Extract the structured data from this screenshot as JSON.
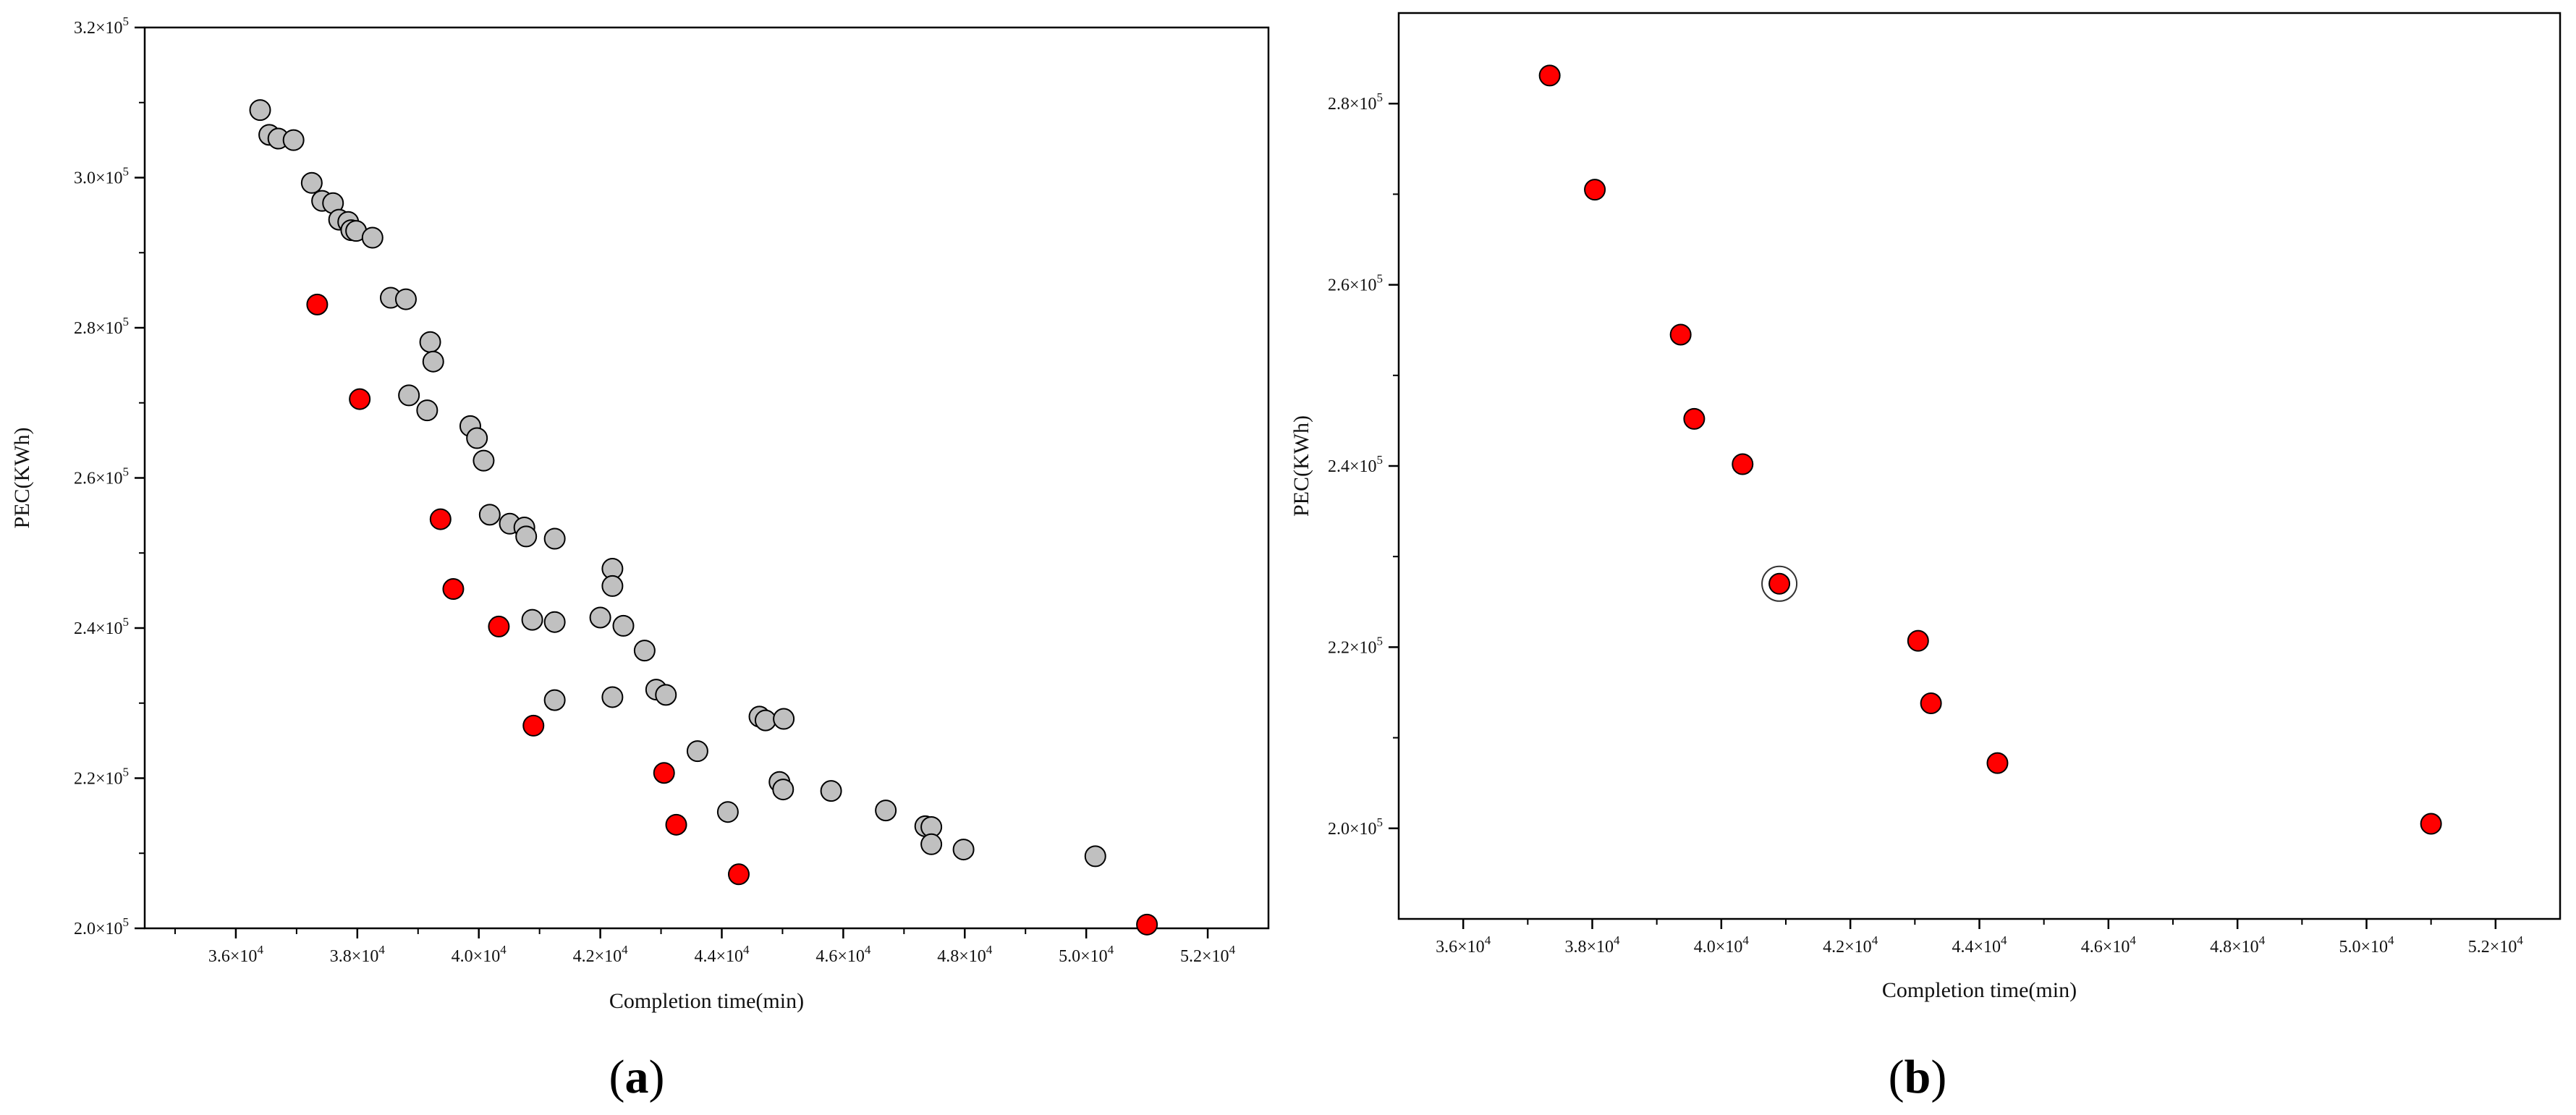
{
  "chart_data": [
    {
      "type": "scatter",
      "panel_label": "a",
      "xlabel": "Completion time(min)",
      "ylabel": "PEC(KWh)",
      "xlim": [
        34500,
        53000
      ],
      "ylim": [
        200000,
        320000
      ],
      "x_ticks": [
        {
          "value": 36000,
          "mant": "3.6",
          "exp": "4"
        },
        {
          "value": 38000,
          "mant": "3.8",
          "exp": "4"
        },
        {
          "value": 40000,
          "mant": "4.0",
          "exp": "4"
        },
        {
          "value": 42000,
          "mant": "4.2",
          "exp": "4"
        },
        {
          "value": 44000,
          "mant": "4.4",
          "exp": "4"
        },
        {
          "value": 46000,
          "mant": "4.6",
          "exp": "4"
        },
        {
          "value": 48000,
          "mant": "4.8",
          "exp": "4"
        },
        {
          "value": 50000,
          "mant": "5.0",
          "exp": "4"
        },
        {
          "value": 52000,
          "mant": "5.2",
          "exp": "4"
        }
      ],
      "y_ticks": [
        {
          "value": 200000,
          "mant": "2.0",
          "exp": "5"
        },
        {
          "value": 220000,
          "mant": "2.2",
          "exp": "5"
        },
        {
          "value": 240000,
          "mant": "2.4",
          "exp": "5"
        },
        {
          "value": 260000,
          "mant": "2.6",
          "exp": "5"
        },
        {
          "value": 280000,
          "mant": "2.8",
          "exp": "5"
        },
        {
          "value": 300000,
          "mant": "3.0",
          "exp": "5"
        },
        {
          "value": 320000,
          "mant": "3.2",
          "exp": "5"
        }
      ],
      "series": [
        {
          "color": "#c0c0c0",
          "points": [
            [
              36400,
              309000
            ],
            [
              36550,
              305700
            ],
            [
              36700,
              305200
            ],
            [
              36950,
              305000
            ],
            [
              37250,
              299300
            ],
            [
              37420,
              296900
            ],
            [
              37600,
              296600
            ],
            [
              37700,
              294400
            ],
            [
              37850,
              294100
            ],
            [
              37900,
              293000
            ],
            [
              37980,
              292900
            ],
            [
              38250,
              292000
            ],
            [
              38550,
              284000
            ],
            [
              38800,
              283800
            ],
            [
              38850,
              271000
            ],
            [
              39150,
              269000
            ],
            [
              39200,
              278100
            ],
            [
              39250,
              275500
            ],
            [
              39860,
              266900
            ],
            [
              39970,
              265300
            ],
            [
              40080,
              262300
            ],
            [
              40180,
              255100
            ],
            [
              40510,
              253900
            ],
            [
              40750,
              253400
            ],
            [
              40780,
              252200
            ],
            [
              41250,
              251900
            ],
            [
              42200,
              247900
            ],
            [
              42200,
              245600
            ],
            [
              40880,
              241100
            ],
            [
              41250,
              240800
            ],
            [
              42000,
              241400
            ],
            [
              42380,
              240300
            ],
            [
              42730,
              237000
            ],
            [
              41250,
              230400
            ],
            [
              42200,
              230800
            ],
            [
              42920,
              231800
            ],
            [
              43080,
              231100
            ],
            [
              43600,
              223600
            ],
            [
              44100,
              215500
            ],
            [
              44620,
              228200
            ],
            [
              44720,
              227700
            ],
            [
              45020,
              227900
            ],
            [
              44950,
              219500
            ],
            [
              45010,
              218500
            ],
            [
              45800,
              218300
            ],
            [
              46700,
              215700
            ],
            [
              47350,
              213600
            ],
            [
              47450,
              213500
            ],
            [
              47450,
              211200
            ],
            [
              47980,
              210500
            ],
            [
              50150,
              209600
            ]
          ]
        },
        {
          "color": "#ff0000",
          "points": [
            [
              37340,
              283100
            ],
            [
              38040,
              270500
            ],
            [
              39370,
              254500
            ],
            [
              39580,
              245200
            ],
            [
              40330,
              240200
            ],
            [
              40900,
              227000
            ],
            [
              43050,
              220700
            ],
            [
              43250,
              213800
            ],
            [
              44280,
              207200
            ],
            [
              51000,
              200500
            ]
          ]
        }
      ]
    },
    {
      "type": "scatter",
      "panel_label": "b",
      "xlabel": "Completion time(min)",
      "ylabel": "PEC(KWh)",
      "xlim": [
        35000,
        53000
      ],
      "ylim": [
        190000,
        290000
      ],
      "x_ticks": [
        {
          "value": 36000,
          "mant": "3.6",
          "exp": "4"
        },
        {
          "value": 38000,
          "mant": "3.8",
          "exp": "4"
        },
        {
          "value": 40000,
          "mant": "4.0",
          "exp": "4"
        },
        {
          "value": 42000,
          "mant": "4.2",
          "exp": "4"
        },
        {
          "value": 44000,
          "mant": "4.4",
          "exp": "4"
        },
        {
          "value": 46000,
          "mant": "4.6",
          "exp": "4"
        },
        {
          "value": 48000,
          "mant": "4.8",
          "exp": "4"
        },
        {
          "value": 50000,
          "mant": "5.0",
          "exp": "4"
        },
        {
          "value": 52000,
          "mant": "5.2",
          "exp": "4"
        }
      ],
      "y_ticks": [
        {
          "value": 200000,
          "mant": "2.0",
          "exp": "5"
        },
        {
          "value": 220000,
          "mant": "2.2",
          "exp": "5"
        },
        {
          "value": 240000,
          "mant": "2.4",
          "exp": "5"
        },
        {
          "value": 260000,
          "mant": "2.6",
          "exp": "5"
        },
        {
          "value": 280000,
          "mant": "2.8",
          "exp": "5"
        }
      ],
      "series": [
        {
          "color": "#ff0000",
          "points": [
            [
              37340,
              283100
            ],
            [
              38040,
              270500
            ],
            [
              39370,
              254500
            ],
            [
              39580,
              245200
            ],
            [
              40330,
              240200
            ],
            [
              40900,
              227000
            ],
            [
              43050,
              220700
            ],
            [
              43250,
              213800
            ],
            [
              44280,
              207200
            ],
            [
              51000,
              200500
            ]
          ]
        }
      ],
      "highlighted_point": [
        40900,
        227000
      ]
    }
  ]
}
